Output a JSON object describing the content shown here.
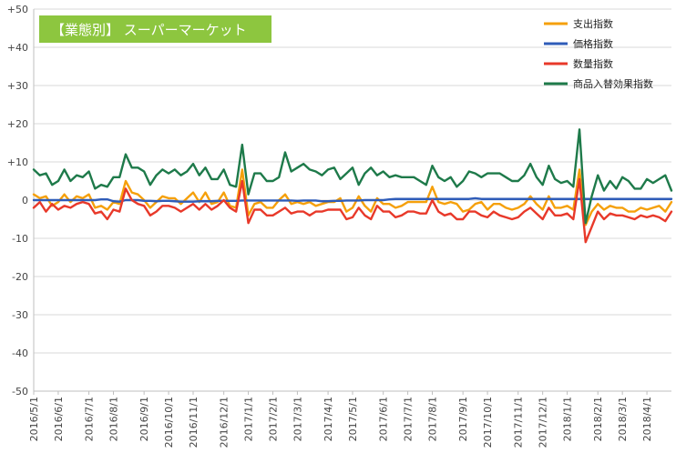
{
  "chart_data": {
    "type": "line",
    "title": "【業態別】 スーパーマーケット",
    "title_box_color": "#8dc63f",
    "ylim": [
      -50,
      50
    ],
    "ytick_labels": [
      "+50",
      "+40",
      "+30",
      "+20",
      "+10",
      "0",
      "-10",
      "-20",
      "-30",
      "-40",
      "-50"
    ],
    "ytick_values": [
      50,
      40,
      30,
      20,
      10,
      0,
      -10,
      -20,
      -30,
      -40,
      -50
    ],
    "xtick_labels": [
      "2016/5/1",
      "2016/6/1",
      "2016/7/1",
      "2016/8/1",
      "2016/9/1",
      "2016/10/1",
      "2016/11/1",
      "2016/12/1",
      "2017/1/1",
      "2017/2/1",
      "2017/3/1",
      "2017/4/1",
      "2017/5/1",
      "2017/6/1",
      "2017/7/1",
      "2017/8/1",
      "2017/9/1",
      "2017/10/1",
      "2017/11/1",
      "2017/12/1",
      "2018/1/1",
      "2018/2/1",
      "2018/3/1",
      "2018/4/1"
    ],
    "xtick_index": [
      0,
      4,
      9,
      13,
      18,
      22,
      26,
      31,
      35,
      39,
      43,
      48,
      52,
      57,
      61,
      65,
      70,
      74,
      79,
      83,
      87,
      92,
      96,
      100
    ],
    "grid": true,
    "legend_position": "top-right",
    "series": [
      {
        "name": "支出指数",
        "color": "#f5a00b",
        "values": [
          1.5,
          0.5,
          1,
          -1.5,
          -0.5,
          1.5,
          -0.5,
          1,
          0.5,
          1.5,
          -2,
          -1.5,
          -2.5,
          -0.5,
          -1,
          5,
          2,
          1.5,
          0,
          -2,
          -0.5,
          1,
          0.5,
          0.5,
          -1,
          0.5,
          2,
          -0.5,
          2,
          -1,
          -0.5,
          2,
          -1.5,
          -2,
          8,
          -4,
          -1,
          -0.5,
          -2,
          -2,
          0,
          1.5,
          -1,
          -0.5,
          -1,
          -0.5,
          -1.5,
          -1,
          -0.5,
          -0.5,
          0.5,
          -3,
          -2,
          1,
          -1.5,
          -3,
          0.5,
          -1,
          -1,
          -2,
          -1.5,
          -0.5,
          -0.5,
          -0.5,
          -0.5,
          3.5,
          -0.5,
          -1,
          -0.5,
          -1,
          -3,
          -2.5,
          -1,
          -0.5,
          -2.5,
          -1,
          -1,
          -2,
          -2.5,
          -2,
          -1,
          1,
          -1,
          -2.5,
          1,
          -2,
          -2,
          -1.5,
          -2.5,
          8,
          -6.5,
          -3,
          -1,
          -2.5,
          -1.5,
          -2,
          -2,
          -3,
          -3,
          -2,
          -2.5,
          -2,
          -1.5,
          -3,
          -0.5
        ]
      },
      {
        "name": "価格指数",
        "color": "#2f5cb8",
        "values": [
          0,
          0,
          0,
          0,
          0,
          0,
          0,
          0,
          0,
          0,
          0,
          0.2,
          0.2,
          -0.3,
          -0.4,
          0,
          0,
          0,
          -0.2,
          -0.2,
          -0.3,
          -0.2,
          -0.2,
          -0.3,
          -0.4,
          -0.4,
          -0.4,
          -0.3,
          -0.3,
          -0.3,
          -0.2,
          -0.2,
          -0.2,
          -0.2,
          -0.1,
          -0.1,
          -0.1,
          -0.1,
          -0.1,
          -0.1,
          -0.1,
          -0.1,
          -0.1,
          -0.2,
          -0.1,
          -0.1,
          -0.1,
          -0.3,
          -0.3,
          -0.2,
          -0.2,
          -0.1,
          -0.1,
          -0.1,
          0,
          0,
          0,
          0,
          0.2,
          0.3,
          0.3,
          0.3,
          0.3,
          0.3,
          0.3,
          0.3,
          0.3,
          0.3,
          0.3,
          0.3,
          0.3,
          0.3,
          0.5,
          0.3,
          0.3,
          0.3,
          0.3,
          0.3,
          0.3,
          0.3,
          0.3,
          0.3,
          0.3,
          0.3,
          0.3,
          0.3,
          0.3,
          0.3,
          0.3,
          0.3,
          0.3,
          0.3,
          0.3,
          0.3,
          0.3,
          0.3,
          0.3,
          0.3,
          0.3,
          0.3,
          0.3,
          0.3,
          0.3,
          0.3,
          0.3
        ]
      },
      {
        "name": "数量指数",
        "color": "#e8392a",
        "values": [
          -2,
          -0.5,
          -3,
          -1,
          -2.5,
          -1.5,
          -2,
          -1,
          -0.5,
          -1,
          -3.5,
          -3,
          -5,
          -2.5,
          -3,
          3,
          0,
          -1,
          -1.5,
          -4,
          -3,
          -1.5,
          -1.5,
          -2,
          -3,
          -2,
          -1,
          -2.5,
          -1,
          -2.5,
          -1.5,
          0,
          -2,
          -3,
          5,
          -6,
          -2.5,
          -2.5,
          -4,
          -4,
          -3,
          -2,
          -3.5,
          -3,
          -3,
          -4,
          -3,
          -3,
          -2.5,
          -2.5,
          -2.5,
          -5,
          -4.5,
          -2,
          -4,
          -5,
          -1.5,
          -3,
          -3,
          -4.5,
          -4,
          -3,
          -3,
          -3.5,
          -3.5,
          0,
          -3,
          -4,
          -3.5,
          -5,
          -5,
          -3,
          -3,
          -4,
          -4.5,
          -3,
          -4,
          -4.5,
          -5,
          -4.5,
          -3,
          -2,
          -3.5,
          -5,
          -2,
          -4,
          -4,
          -3.5,
          -5,
          5.5,
          -11,
          -7,
          -3,
          -5,
          -3.5,
          -4,
          -4,
          -4.5,
          -5,
          -4,
          -4.5,
          -4,
          -4.5,
          -5.5,
          -3
        ]
      },
      {
        "name": "商品入替効果指数",
        "color": "#1e7a4a",
        "values": [
          8,
          6.5,
          7,
          4,
          5,
          8,
          5,
          6.5,
          6,
          7.5,
          3,
          4,
          3.5,
          6,
          6,
          12,
          8.5,
          8.5,
          7.5,
          4,
          6.5,
          8,
          7,
          8,
          6.5,
          7.5,
          9.5,
          6.5,
          8.5,
          5.5,
          5.5,
          8,
          4,
          3.5,
          14.5,
          1.5,
          7,
          7,
          5,
          5,
          6,
          12.5,
          7.5,
          8.5,
          9.5,
          8,
          7.5,
          6.5,
          8,
          8.5,
          5.5,
          7,
          8.5,
          4,
          7,
          8.5,
          6.5,
          7.5,
          6,
          6.5,
          6,
          6,
          6,
          5,
          4,
          9,
          6,
          5,
          6,
          3.5,
          5,
          7.5,
          7,
          6,
          7,
          7,
          7,
          6,
          5,
          5,
          6.5,
          9.5,
          6,
          4,
          9,
          5.5,
          4.5,
          5,
          3.5,
          18.5,
          -6,
          1,
          6.5,
          2.5,
          5,
          3,
          6,
          5,
          3,
          3,
          5.5,
          4.5,
          5.5,
          6.5,
          2.5
        ]
      }
    ]
  }
}
